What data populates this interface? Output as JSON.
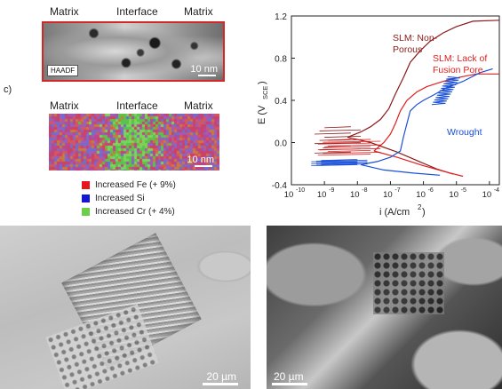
{
  "panel_b": {
    "labels": [
      "Matrix",
      "Interface",
      "Matrix"
    ],
    "badge": "HAADF",
    "scale": "10 nm",
    "frame_color": "#d62728"
  },
  "panel_c": {
    "letter": "c)",
    "labels": [
      "Matrix",
      "Interface",
      "Matrix"
    ],
    "scale": "10 nm",
    "legend": [
      {
        "label": "Increased Fe (+ 9%)",
        "color": "#e8141c"
      },
      {
        "label": "Increased Si",
        "color": "#1515d8"
      },
      {
        "label": "Increased Cr (+ 4%)",
        "color": "#6ccf4a"
      }
    ]
  },
  "chart_data": {
    "type": "line",
    "xlabel_main": "i (A/cm",
    "xlabel_sup": "2",
    "xlabel_tail": ")",
    "ylabel_main": "E (V",
    "ylabel_sub": "SCE",
    "ylabel_tail": ")",
    "x_log": true,
    "xlim_exp": [
      -10,
      -3.7
    ],
    "ylim": [
      -0.4,
      1.2
    ],
    "yticks": [
      "1.2",
      "0.8",
      "0.4",
      "0.0",
      "-0.4"
    ],
    "xticks": [
      "10",
      "10",
      "10",
      "10",
      "10",
      "10",
      "10"
    ],
    "xtick_exps": [
      "-10",
      "-9",
      "-8",
      "-7",
      "-6",
      "-5",
      "-4"
    ],
    "annotations": [
      {
        "text": "SLM: Non-",
        "color": "#8b1a1a"
      },
      {
        "text": "Porous",
        "color": "#8b1a1a"
      },
      {
        "text": "SLM: Lack of",
        "color": "#e02020"
      },
      {
        "text": "Fusion Pore",
        "color": "#e02020"
      },
      {
        "text": "Wrought",
        "color": "#1a4fd8"
      }
    ],
    "series": [
      {
        "color": "#8b1a1a",
        "points": [
          [
            -8.3,
            0.05
          ],
          [
            -7.9,
            0.1
          ],
          [
            -7.6,
            0.15
          ],
          [
            -7.3,
            0.22
          ],
          [
            -7.05,
            0.32
          ],
          [
            -6.85,
            0.46
          ],
          [
            -6.6,
            0.62
          ],
          [
            -6.4,
            0.76
          ],
          [
            -6.1,
            0.87
          ],
          [
            -5.8,
            0.96
          ],
          [
            -5.4,
            1.04
          ],
          [
            -5.0,
            1.1
          ],
          [
            -4.5,
            1.15
          ],
          [
            -3.7,
            1.16
          ]
        ],
        "cathodic": [
          [
            -8.3,
            0.05
          ],
          [
            -7.6,
            0.0
          ],
          [
            -6.8,
            -0.09
          ],
          [
            -6.2,
            -0.17
          ],
          [
            -5.6,
            -0.25
          ],
          [
            -5.1,
            -0.3
          ]
        ]
      },
      {
        "color": "#e02020",
        "points": [
          [
            -7.5,
            -0.08
          ],
          [
            -7.2,
            0.0
          ],
          [
            -7.0,
            0.08
          ],
          [
            -6.85,
            0.18
          ],
          [
            -6.7,
            0.3
          ],
          [
            -6.5,
            0.4
          ],
          [
            -6.2,
            0.48
          ],
          [
            -5.9,
            0.53
          ],
          [
            -5.4,
            0.58
          ],
          [
            -4.9,
            0.62
          ],
          [
            -4.4,
            0.65
          ],
          [
            -3.7,
            0.65
          ]
        ],
        "cathodic": [
          [
            -7.5,
            -0.08
          ],
          [
            -6.8,
            -0.14
          ],
          [
            -6.0,
            -0.22
          ],
          [
            -5.3,
            -0.28
          ],
          [
            -4.8,
            -0.32
          ]
        ]
      },
      {
        "color": "#1a4fd8",
        "points": [
          [
            -7.9,
            -0.21
          ],
          [
            -7.4,
            -0.18
          ],
          [
            -7.0,
            -0.14
          ],
          [
            -6.7,
            -0.08
          ],
          [
            -6.6,
            0.06
          ],
          [
            -6.5,
            0.18
          ],
          [
            -6.4,
            0.3
          ],
          [
            -6.2,
            0.36
          ],
          [
            -6.0,
            0.4
          ],
          [
            -5.7,
            0.45
          ],
          [
            -5.3,
            0.52
          ],
          [
            -4.8,
            0.58
          ],
          [
            -4.3,
            0.66
          ],
          [
            -3.9,
            0.7
          ]
        ],
        "cathodic": [
          [
            -7.9,
            -0.21
          ],
          [
            -7.2,
            -0.26
          ],
          [
            -6.3,
            -0.29
          ],
          [
            -5.5,
            -0.31
          ]
        ]
      }
    ]
  },
  "panel_d": {
    "scale": "20 µm"
  },
  "panel_e": {
    "scale": "20 µm"
  }
}
